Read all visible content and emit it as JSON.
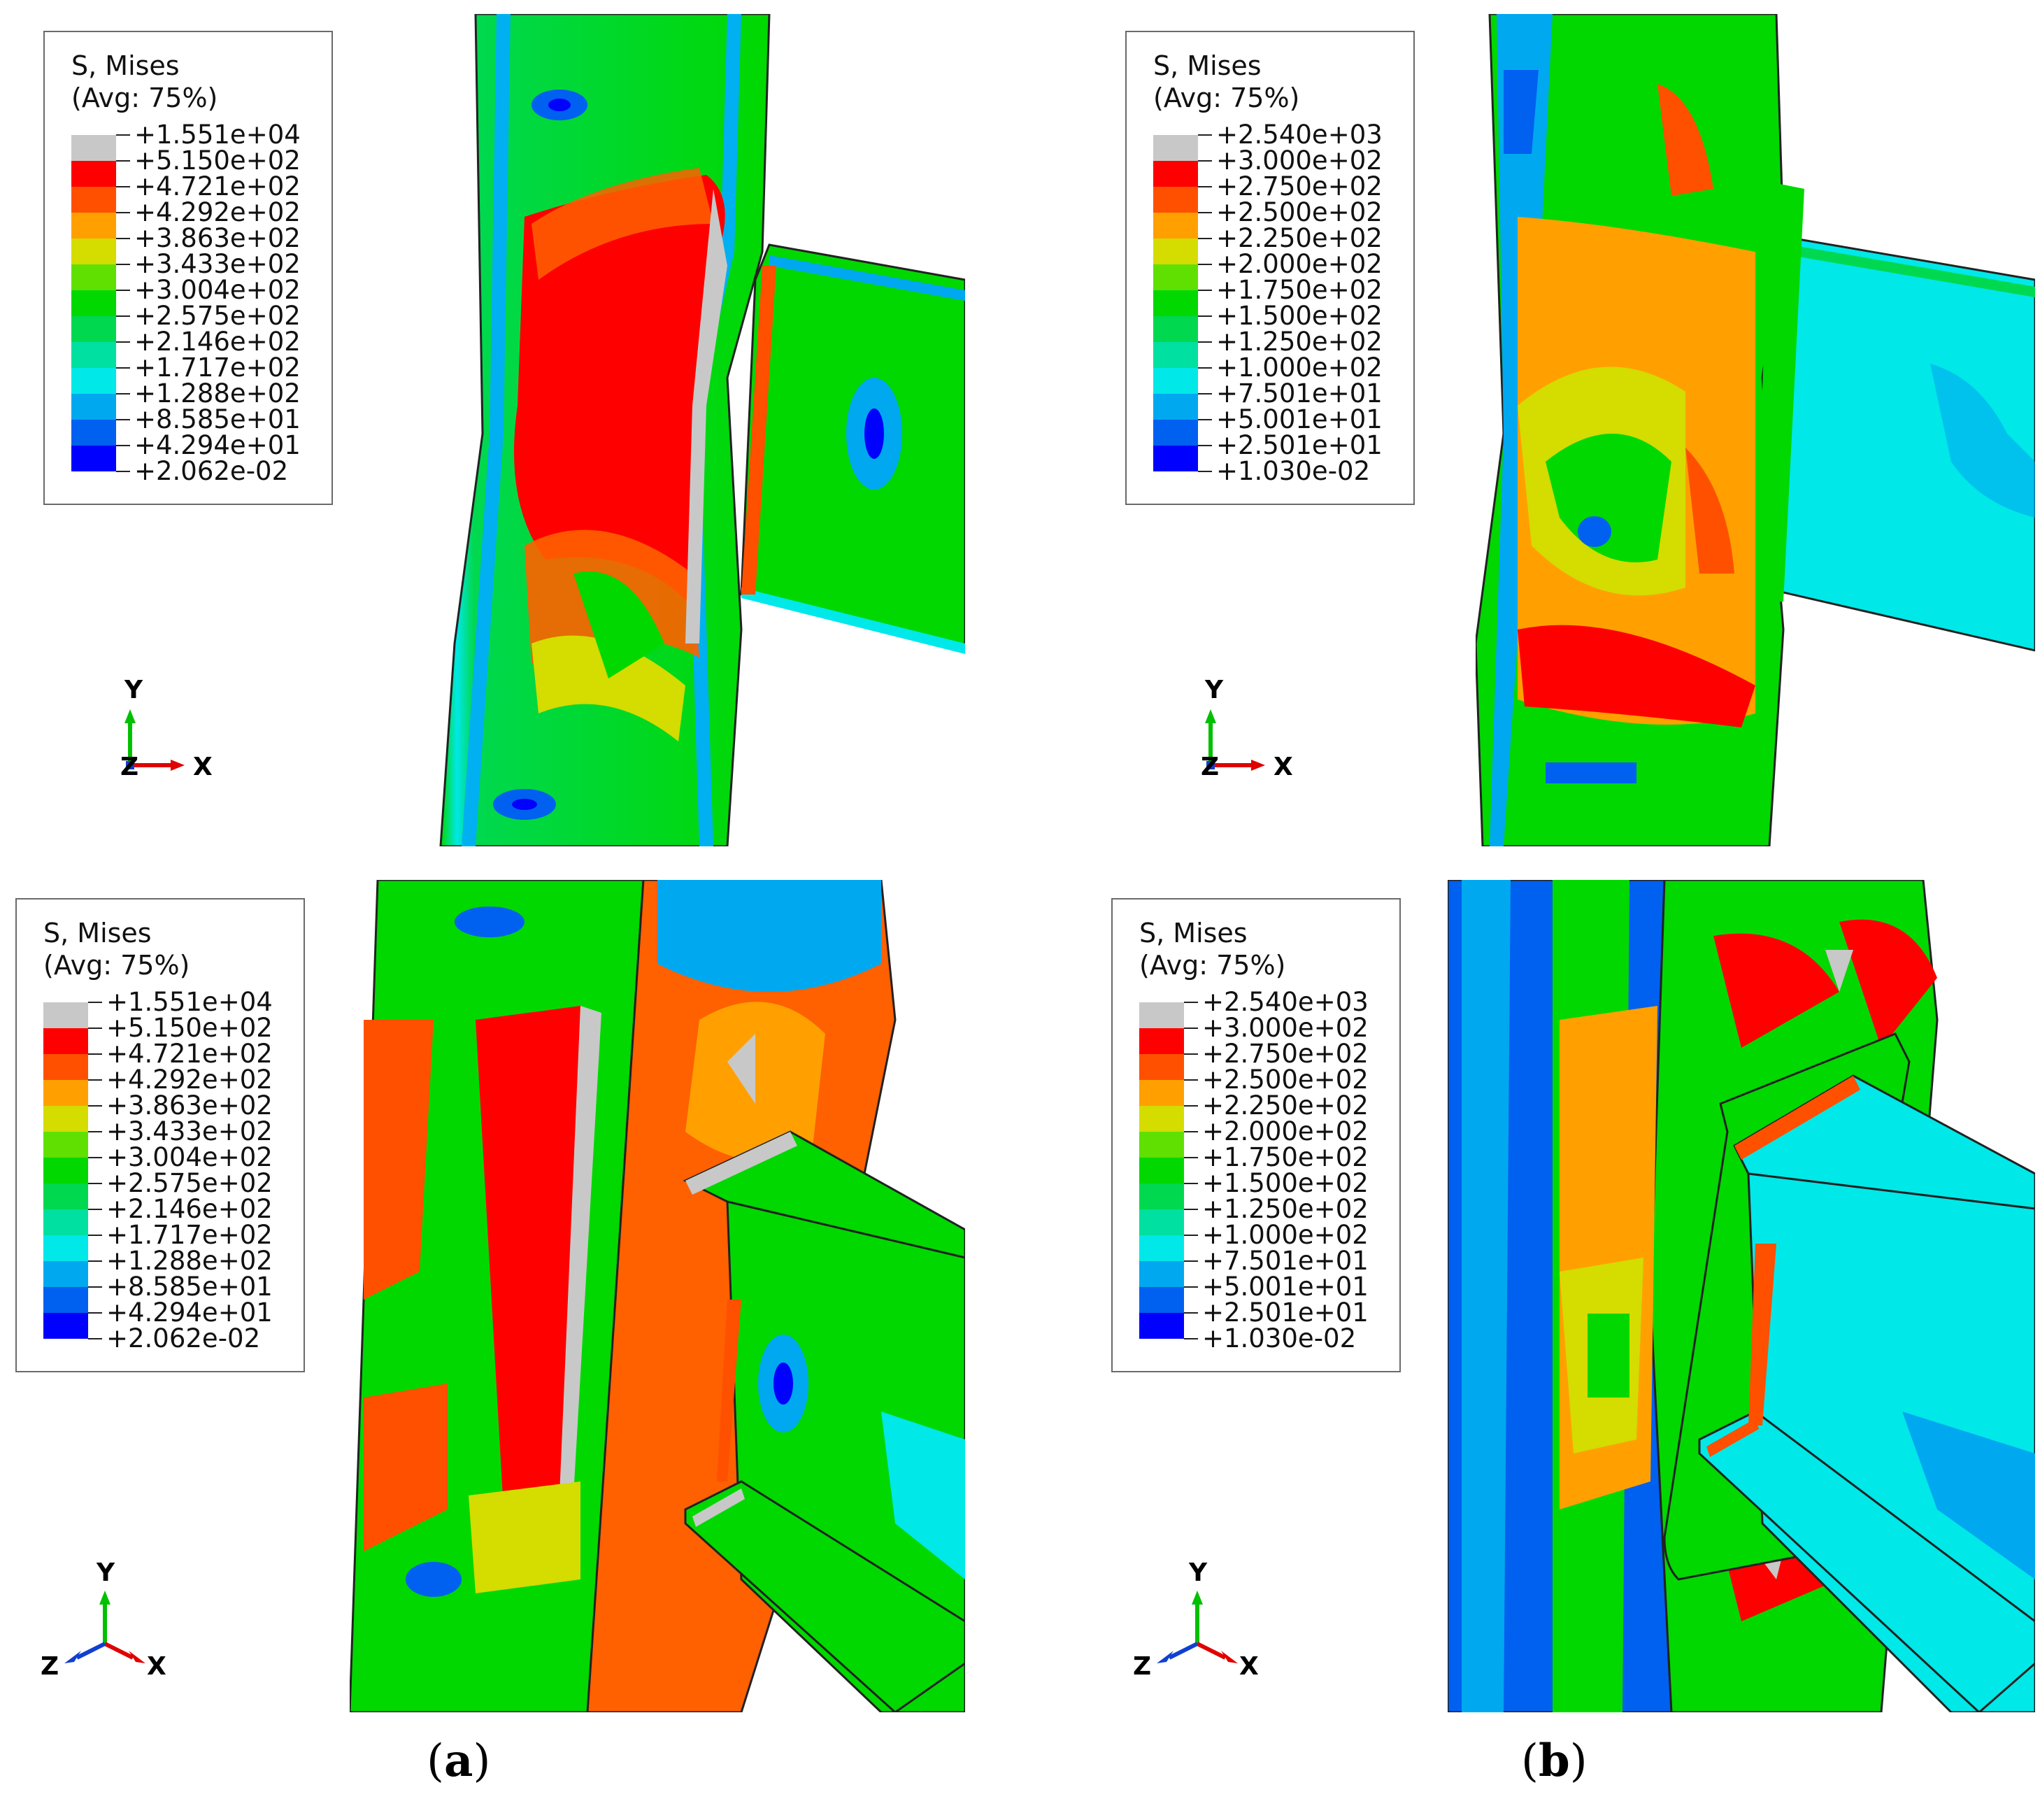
{
  "panels": [
    {
      "id": "a-top",
      "legend": {
        "title_line1": "S, Mises",
        "title_line2": "(Avg: 75%)",
        "values": [
          "+1.551e+04",
          "+5.150e+02",
          "+4.721e+02",
          "+4.292e+02",
          "+3.863e+02",
          "+3.433e+02",
          "+3.004e+02",
          "+2.575e+02",
          "+2.146e+02",
          "+1.717e+02",
          "+1.288e+02",
          "+8.585e+01",
          "+4.294e+01",
          "+2.062e-02"
        ],
        "colors": [
          "#c8c8c8",
          "#ff0000",
          "#ff5000",
          "#ffa000",
          "#d4dc00",
          "#60e000",
          "#00d800",
          "#00d850",
          "#00e0a0",
          "#00e8e8",
          "#00a8f0",
          "#0060f0",
          "#0000ff"
        ]
      },
      "triad": {
        "y": "Y",
        "x": "X",
        "z": "Z"
      }
    },
    {
      "id": "b-top",
      "legend": {
        "title_line1": "S, Mises",
        "title_line2": "(Avg: 75%)",
        "values": [
          "+2.540e+03",
          "+3.000e+02",
          "+2.750e+02",
          "+2.500e+02",
          "+2.250e+02",
          "+2.000e+02",
          "+1.750e+02",
          "+1.500e+02",
          "+1.250e+02",
          "+1.000e+02",
          "+7.501e+01",
          "+5.001e+01",
          "+2.501e+01",
          "+1.030e-02"
        ],
        "colors": [
          "#c8c8c8",
          "#ff0000",
          "#ff5000",
          "#ffa000",
          "#d4dc00",
          "#60e000",
          "#00d800",
          "#00d850",
          "#00e0a0",
          "#00e8e8",
          "#00a8f0",
          "#0060f0",
          "#0000ff"
        ]
      },
      "triad": {
        "y": "Y",
        "x": "X",
        "z": "Z"
      }
    },
    {
      "id": "a-bottom",
      "legend": {
        "title_line1": "S, Mises",
        "title_line2": "(Avg: 75%)",
        "values": [
          "+1.551e+04",
          "+5.150e+02",
          "+4.721e+02",
          "+4.292e+02",
          "+3.863e+02",
          "+3.433e+02",
          "+3.004e+02",
          "+2.575e+02",
          "+2.146e+02",
          "+1.717e+02",
          "+1.288e+02",
          "+8.585e+01",
          "+4.294e+01",
          "+2.062e-02"
        ],
        "colors": [
          "#c8c8c8",
          "#ff0000",
          "#ff5000",
          "#ffa000",
          "#d4dc00",
          "#60e000",
          "#00d800",
          "#00d850",
          "#00e0a0",
          "#00e8e8",
          "#00a8f0",
          "#0060f0",
          "#0000ff"
        ]
      },
      "triad": {
        "y": "Y",
        "x": "X",
        "z": "Z"
      }
    },
    {
      "id": "b-bottom",
      "legend": {
        "title_line1": "S, Mises",
        "title_line2": "(Avg: 75%)",
        "values": [
          "+2.540e+03",
          "+3.000e+02",
          "+2.750e+02",
          "+2.500e+02",
          "+2.250e+02",
          "+2.000e+02",
          "+1.750e+02",
          "+1.500e+02",
          "+1.250e+02",
          "+1.000e+02",
          "+7.501e+01",
          "+5.001e+01",
          "+2.501e+01",
          "+1.030e-02"
        ],
        "colors": [
          "#c8c8c8",
          "#ff0000",
          "#ff5000",
          "#ffa000",
          "#d4dc00",
          "#60e000",
          "#00d800",
          "#00d850",
          "#00e0a0",
          "#00e8e8",
          "#00a8f0",
          "#0060f0",
          "#0000ff"
        ]
      },
      "triad": {
        "y": "Y",
        "x": "X",
        "z": "Z"
      }
    }
  ],
  "captions": {
    "a": {
      "open": "(",
      "letter": "a",
      "close": ")"
    },
    "b": {
      "open": "(",
      "letter": "b",
      "close": ")"
    }
  }
}
